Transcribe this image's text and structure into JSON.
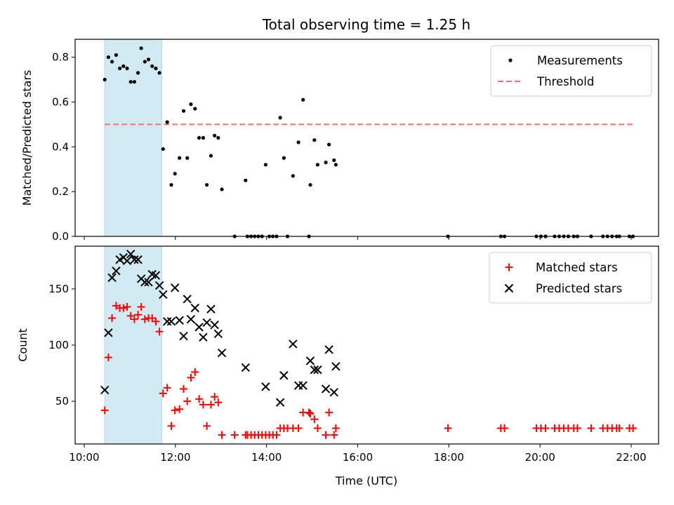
{
  "chart_data": {
    "title": "Total observing time = 1.25 h",
    "shared_x": {
      "label": "Time (UTC)",
      "range_hours": [
        9.8,
        22.6
      ],
      "ticks": [
        {
          "h": 10,
          "label": "10:00"
        },
        {
          "h": 12,
          "label": "12:00"
        },
        {
          "h": 14,
          "label": "14:00"
        },
        {
          "h": 16,
          "label": "16:00"
        },
        {
          "h": 18,
          "label": "18:00"
        },
        {
          "h": 20,
          "label": "20:00"
        },
        {
          "h": 22,
          "label": "22:00"
        }
      ]
    },
    "highlight_span_hours": [
      10.45,
      11.7
    ],
    "highlight_color": "#add8e6",
    "panels": [
      {
        "type": "scatter",
        "ylabel": "Matched/Predicted stars",
        "ylim": [
          0,
          0.88
        ],
        "yticks": [
          {
            "v": 0.0,
            "label": "0.0"
          },
          {
            "v": 0.2,
            "label": "0.2"
          },
          {
            "v": 0.4,
            "label": "0.4"
          },
          {
            "v": 0.6,
            "label": "0.6"
          },
          {
            "v": 0.8,
            "label": "0.8"
          }
        ],
        "legend_position": "top-right",
        "threshold": {
          "name": "Threshold",
          "value": 0.5,
          "x_range_hours": [
            10.45,
            22.05
          ],
          "color": "#ff7070"
        },
        "series": [
          {
            "name": "Measurements",
            "marker": "dot",
            "color": "#000000",
            "points": [
              [
                10.45,
                0.7
              ],
              [
                10.53,
                0.8
              ],
              [
                10.61,
                0.78
              ],
              [
                10.7,
                0.81
              ],
              [
                10.78,
                0.75
              ],
              [
                10.86,
                0.76
              ],
              [
                10.94,
                0.75
              ],
              [
                11.02,
                0.69
              ],
              [
                11.1,
                0.69
              ],
              [
                11.18,
                0.73
              ],
              [
                11.25,
                0.84
              ],
              [
                11.33,
                0.78
              ],
              [
                11.41,
                0.79
              ],
              [
                11.49,
                0.76
              ],
              [
                11.57,
                0.75
              ],
              [
                11.65,
                0.73
              ],
              [
                11.73,
                0.39
              ],
              [
                11.82,
                0.51
              ],
              [
                11.91,
                0.23
              ],
              [
                11.99,
                0.28
              ],
              [
                12.09,
                0.35
              ],
              [
                12.18,
                0.56
              ],
              [
                12.26,
                0.35
              ],
              [
                12.34,
                0.59
              ],
              [
                12.43,
                0.57
              ],
              [
                12.52,
                0.44
              ],
              [
                12.61,
                0.44
              ],
              [
                12.69,
                0.23
              ],
              [
                12.78,
                0.36
              ],
              [
                12.86,
                0.45
              ],
              [
                12.94,
                0.44
              ],
              [
                13.02,
                0.21
              ],
              [
                13.3,
                0.0
              ],
              [
                13.54,
                0.25
              ],
              [
                13.58,
                0.0
              ],
              [
                13.66,
                0.0
              ],
              [
                13.74,
                0.0
              ],
              [
                13.82,
                0.0
              ],
              [
                13.9,
                0.0
              ],
              [
                13.98,
                0.32
              ],
              [
                14.06,
                0.0
              ],
              [
                14.14,
                0.0
              ],
              [
                14.22,
                0.0
              ],
              [
                14.3,
                0.53
              ],
              [
                14.38,
                0.35
              ],
              [
                14.46,
                0.0
              ],
              [
                14.58,
                0.27
              ],
              [
                14.7,
                0.42
              ],
              [
                14.8,
                0.61
              ],
              [
                14.93,
                0.0
              ],
              [
                14.96,
                0.23
              ],
              [
                15.05,
                0.43
              ],
              [
                15.12,
                0.32
              ],
              [
                15.3,
                0.33
              ],
              [
                15.37,
                0.41
              ],
              [
                15.48,
                0.34
              ],
              [
                15.52,
                0.32
              ],
              [
                17.98,
                0.0
              ],
              [
                19.14,
                0.0
              ],
              [
                19.22,
                0.0
              ],
              [
                19.92,
                0.0
              ],
              [
                20.02,
                0.0
              ],
              [
                20.12,
                0.0
              ],
              [
                20.32,
                0.0
              ],
              [
                20.42,
                0.0
              ],
              [
                20.52,
                0.0
              ],
              [
                20.62,
                0.0
              ],
              [
                20.74,
                0.0
              ],
              [
                20.82,
                0.0
              ],
              [
                21.12,
                0.0
              ],
              [
                21.38,
                0.0
              ],
              [
                21.48,
                0.0
              ],
              [
                21.58,
                0.0
              ],
              [
                21.68,
                0.0
              ],
              [
                21.74,
                0.0
              ],
              [
                21.96,
                0.0
              ],
              [
                22.04,
                0.0
              ]
            ]
          }
        ]
      },
      {
        "type": "scatter",
        "ylabel": "Count",
        "ylim": [
          12,
          188
        ],
        "yticks": [
          {
            "v": 50,
            "label": "50"
          },
          {
            "v": 100,
            "label": "100"
          },
          {
            "v": 150,
            "label": "150"
          }
        ],
        "legend_position": "top-right",
        "series": [
          {
            "name": "Matched stars",
            "marker": "plus",
            "color": "#ff0000",
            "points": [
              [
                10.45,
                42
              ],
              [
                10.53,
                89
              ],
              [
                10.61,
                124
              ],
              [
                10.7,
                135
              ],
              [
                10.78,
                133
              ],
              [
                10.86,
                133
              ],
              [
                10.94,
                134
              ],
              [
                11.02,
                126
              ],
              [
                11.1,
                123
              ],
              [
                11.18,
                127
              ],
              [
                11.25,
                134
              ],
              [
                11.33,
                123
              ],
              [
                11.41,
                124
              ],
              [
                11.49,
                124
              ],
              [
                11.57,
                121
              ],
              [
                11.65,
                112
              ],
              [
                11.73,
                57
              ],
              [
                11.82,
                62
              ],
              [
                11.91,
                28
              ],
              [
                11.99,
                42
              ],
              [
                12.09,
                43
              ],
              [
                12.18,
                61
              ],
              [
                12.26,
                50
              ],
              [
                12.34,
                71
              ],
              [
                12.43,
                76
              ],
              [
                12.52,
                52
              ],
              [
                12.61,
                47
              ],
              [
                12.69,
                28
              ],
              [
                12.78,
                47
              ],
              [
                12.86,
                54
              ],
              [
                12.94,
                49
              ],
              [
                13.02,
                20
              ],
              [
                13.3,
                20
              ],
              [
                13.54,
                20
              ],
              [
                13.58,
                20
              ],
              [
                13.66,
                20
              ],
              [
                13.74,
                20
              ],
              [
                13.82,
                20
              ],
              [
                13.9,
                20
              ],
              [
                13.98,
                20
              ],
              [
                14.06,
                20
              ],
              [
                14.14,
                20
              ],
              [
                14.22,
                20
              ],
              [
                14.3,
                26
              ],
              [
                14.38,
                26
              ],
              [
                14.46,
                26
              ],
              [
                14.58,
                26
              ],
              [
                14.7,
                26
              ],
              [
                14.8,
                40
              ],
              [
                14.93,
                40
              ],
              [
                14.96,
                39
              ],
              [
                15.05,
                34
              ],
              [
                15.12,
                26
              ],
              [
                15.3,
                20
              ],
              [
                15.37,
                40
              ],
              [
                15.48,
                20
              ],
              [
                15.52,
                26
              ],
              [
                17.98,
                26
              ],
              [
                19.14,
                26
              ],
              [
                19.22,
                26
              ],
              [
                19.92,
                26
              ],
              [
                20.02,
                26
              ],
              [
                20.12,
                26
              ],
              [
                20.32,
                26
              ],
              [
                20.42,
                26
              ],
              [
                20.52,
                26
              ],
              [
                20.62,
                26
              ],
              [
                20.74,
                26
              ],
              [
                20.82,
                26
              ],
              [
                21.12,
                26
              ],
              [
                21.38,
                26
              ],
              [
                21.48,
                26
              ],
              [
                21.58,
                26
              ],
              [
                21.68,
                26
              ],
              [
                21.74,
                26
              ],
              [
                21.96,
                26
              ],
              [
                22.04,
                26
              ]
            ]
          },
          {
            "name": "Predicted stars",
            "marker": "x",
            "color": "#000000",
            "points": [
              [
                10.45,
                60
              ],
              [
                10.53,
                111
              ],
              [
                10.61,
                160
              ],
              [
                10.7,
                166
              ],
              [
                10.78,
                176
              ],
              [
                10.86,
                178
              ],
              [
                10.94,
                175
              ],
              [
                11.02,
                181
              ],
              [
                11.1,
                176
              ],
              [
                11.18,
                176
              ],
              [
                11.25,
                159
              ],
              [
                11.33,
                156
              ],
              [
                11.41,
                156
              ],
              [
                11.49,
                163
              ],
              [
                11.57,
                162
              ],
              [
                11.65,
                153
              ],
              [
                11.73,
                145
              ],
              [
                11.82,
                121
              ],
              [
                11.91,
                121
              ],
              [
                11.99,
                151
              ],
              [
                12.09,
                122
              ],
              [
                12.18,
                108
              ],
              [
                12.26,
                141
              ],
              [
                12.34,
                123
              ],
              [
                12.43,
                133
              ],
              [
                12.52,
                116
              ],
              [
                12.61,
                107
              ],
              [
                12.69,
                120
              ],
              [
                12.78,
                132
              ],
              [
                12.86,
                118
              ],
              [
                12.94,
                110
              ],
              [
                13.02,
                93
              ],
              [
                13.54,
                80
              ],
              [
                13.98,
                63
              ],
              [
                14.3,
                49
              ],
              [
                14.38,
                73
              ],
              [
                14.58,
                101
              ],
              [
                14.7,
                64
              ],
              [
                14.8,
                64
              ],
              [
                14.96,
                86
              ],
              [
                15.05,
                78
              ],
              [
                15.12,
                78
              ],
              [
                15.3,
                61
              ],
              [
                15.37,
                96
              ],
              [
                15.48,
                58
              ],
              [
                15.52,
                81
              ]
            ]
          }
        ]
      }
    ]
  }
}
